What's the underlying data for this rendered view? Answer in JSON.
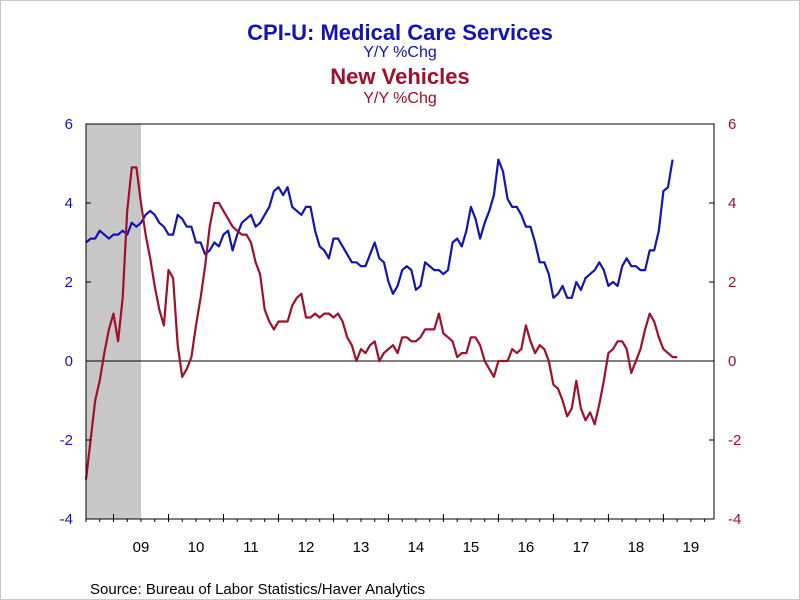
{
  "chart_data": {
    "type": "line",
    "titles": [
      {
        "text": "CPI-U: Medical Care Services",
        "color": "#1414b4",
        "size": "large"
      },
      {
        "text": "Y/Y %Chg",
        "color": "#1414b4",
        "size": "small"
      },
      {
        "text": "New Vehicles",
        "color": "#a0102a",
        "size": "large"
      },
      {
        "text": "Y/Y %Chg",
        "color": "#a0102a",
        "size": "small"
      }
    ],
    "source": "Source:  Bureau of Labor Statistics/Haver Analytics",
    "x_range": [
      2008.5,
      2019.92
    ],
    "x_tick_labels": [
      "09",
      "10",
      "11",
      "12",
      "13",
      "14",
      "15",
      "16",
      "17",
      "18",
      "19"
    ],
    "x_tick_label_years": [
      2009,
      2010,
      2011,
      2012,
      2013,
      2014,
      2015,
      2016,
      2017,
      2018,
      2019
    ],
    "recession_shade": [
      2008.5,
      2009.5
    ],
    "y_left": {
      "min": -4,
      "max": 6,
      "ticks": [
        "-4",
        "-2",
        "0",
        "2",
        "4",
        "6"
      ],
      "color": "#1414b4"
    },
    "y_right": {
      "min": -4,
      "max": 6,
      "ticks": [
        "-4",
        "-2",
        "0",
        "2",
        "4",
        "6"
      ],
      "color": "#a0102a"
    },
    "grid": false,
    "zero_line": true,
    "colors": {
      "shade": "#c8c8c8",
      "axis": "#000000",
      "zero": "#000000"
    },
    "series": [
      {
        "axis": "left",
        "color": "#1414b4",
        "start": 2008.5,
        "step": 0.0833333,
        "values": [
          3.0,
          3.1,
          3.1,
          3.3,
          3.2,
          3.1,
          3.2,
          3.2,
          3.3,
          3.2,
          3.5,
          3.4,
          3.5,
          3.7,
          3.8,
          3.7,
          3.5,
          3.4,
          3.2,
          3.2,
          3.7,
          3.6,
          3.4,
          3.4,
          3.0,
          3.0,
          2.7,
          2.8,
          3.0,
          2.9,
          3.2,
          3.3,
          2.8,
          3.2,
          3.5,
          3.6,
          3.7,
          3.4,
          3.5,
          3.7,
          3.9,
          4.3,
          4.4,
          4.2,
          4.4,
          3.9,
          3.8,
          3.7,
          3.9,
          3.9,
          3.3,
          2.9,
          2.8,
          2.6,
          3.1,
          3.1,
          2.9,
          2.7,
          2.5,
          2.5,
          2.4,
          2.4,
          2.7,
          3.0,
          2.6,
          2.5,
          2.0,
          1.7,
          1.9,
          2.3,
          2.4,
          2.3,
          1.8,
          1.9,
          2.5,
          2.4,
          2.3,
          2.3,
          2.2,
          2.3,
          3.0,
          3.1,
          2.9,
          3.3,
          3.9,
          3.6,
          3.1,
          3.5,
          3.8,
          4.2,
          5.1,
          4.8,
          4.1,
          3.9,
          3.9,
          3.7,
          3.4,
          3.4,
          3.0,
          2.5,
          2.5,
          2.2,
          1.6,
          1.7,
          1.9,
          1.6,
          1.6,
          2.0,
          1.8,
          2.1,
          2.2,
          2.3,
          2.5,
          2.3,
          1.9,
          2.0,
          1.9,
          2.4,
          2.6,
          2.4,
          2.4,
          2.3,
          2.3,
          2.8,
          2.8,
          3.3,
          4.3,
          4.4,
          5.1
        ]
      },
      {
        "axis": "right",
        "color": "#a0102a",
        "start": 2008.5,
        "step": 0.0833333,
        "values": [
          -3.0,
          -2.0,
          -1.0,
          -0.5,
          0.2,
          0.8,
          1.2,
          0.5,
          1.6,
          3.8,
          4.9,
          4.9,
          4.0,
          3.2,
          2.6,
          1.9,
          1.3,
          0.9,
          2.3,
          2.1,
          0.4,
          -0.4,
          -0.2,
          0.1,
          0.9,
          1.6,
          2.4,
          3.4,
          4.0,
          4.0,
          3.8,
          3.6,
          3.4,
          3.3,
          3.2,
          3.2,
          3.0,
          2.5,
          2.2,
          1.3,
          1.0,
          0.8,
          1.0,
          1.0,
          1.0,
          1.4,
          1.6,
          1.7,
          1.1,
          1.1,
          1.2,
          1.1,
          1.2,
          1.2,
          1.1,
          1.2,
          1.0,
          0.6,
          0.4,
          0.0,
          0.3,
          0.2,
          0.4,
          0.5,
          0.0,
          0.2,
          0.3,
          0.4,
          0.2,
          0.6,
          0.6,
          0.5,
          0.5,
          0.6,
          0.8,
          0.8,
          0.8,
          1.2,
          0.7,
          0.6,
          0.5,
          0.1,
          0.2,
          0.2,
          0.6,
          0.6,
          0.4,
          0.0,
          -0.2,
          -0.4,
          0.0,
          0.0,
          0.0,
          0.3,
          0.2,
          0.3,
          0.9,
          0.5,
          0.2,
          0.4,
          0.3,
          0.0,
          -0.6,
          -0.7,
          -1.0,
          -1.4,
          -1.2,
          -0.5,
          -1.2,
          -1.5,
          -1.3,
          -1.6,
          -1.1,
          -0.5,
          0.2,
          0.3,
          0.5,
          0.5,
          0.3,
          -0.3,
          0.0,
          0.3,
          0.8,
          1.2,
          1.0,
          0.6,
          0.3,
          0.2,
          0.1,
          0.1
        ]
      }
    ]
  }
}
